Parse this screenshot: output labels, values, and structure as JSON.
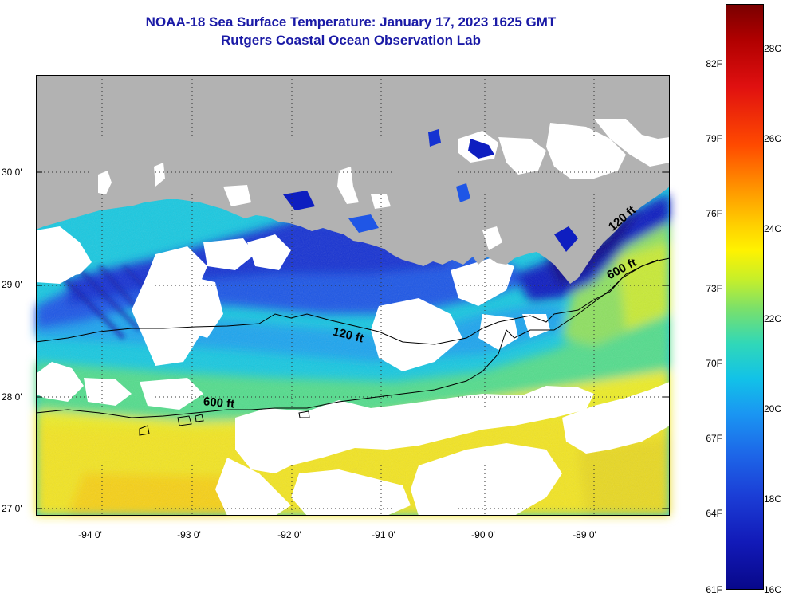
{
  "title": "NOAA-18 Sea Surface Temperature:  January 17, 2023 1625 GMT",
  "subtitle": "Rutgers Coastal Ocean Observation Lab",
  "latitude_labels": [
    "30 0'",
    "29 0'",
    "28 0'",
    "27 0'"
  ],
  "longitude_labels": [
    "-94 0'",
    "-93 0'",
    "-92 0'",
    "-91 0'",
    "-90 0'",
    "-89 0'"
  ],
  "contour_labels": {
    "c120_west": "120 ft",
    "c600_west": "600 ft",
    "c600_east": "600 ft",
    "c120_east": "120 ft"
  },
  "colorbar": {
    "fahrenheit_ticks": [
      "82F",
      "79F",
      "76F",
      "73F",
      "70F",
      "67F",
      "64F",
      "61F"
    ],
    "celsius_ticks": [
      "28C",
      "26C",
      "24C",
      "22C",
      "20C",
      "18C",
      "16C"
    ]
  },
  "colors": {
    "land": "#b2b2b2",
    "cloud": "#ffffff",
    "title": "#1a1aa6"
  }
}
